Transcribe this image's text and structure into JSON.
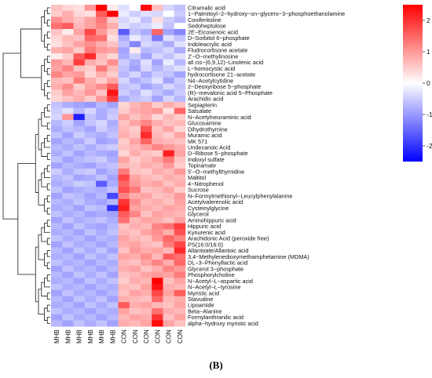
{
  "figure": {
    "caption": "(B)"
  },
  "chart_data": {
    "type": "heatmap",
    "title": "",
    "columns": [
      "MHB",
      "MHB",
      "MHB",
      "MHB",
      "MHB",
      "MHB",
      "CON",
      "CON",
      "CON",
      "CON",
      "CON",
      "CON"
    ],
    "rows": [
      "Citramalic acid",
      "1−Palmitoyl−2−hydroxy−sn−glycero−3−phosphoethanolamine",
      "Coniferitoline",
      "Sedoheptulose",
      "2E−Eicosenoic acid",
      "D−Sorbitol 6−phosphate",
      "Indoleacrylic acid",
      "Fludrocortisone acetate",
      "2'−O−methylinosine",
      "all cis−(6,9,12)−Linolenic acid",
      "L−homocystic acid",
      "hydrocortisone 21−acetate",
      "N4−Acetylcytidine",
      "2−Deoxyribose 5−phosphate",
      "(R)−mevalonic acid 5−Phosphate",
      "Arachidic acid",
      "Sepiapterin",
      "Salsalate",
      "N−Acetylneuraminic acid",
      "Glucosamine",
      "Dihydrothymine",
      "Muramic acid",
      "MK 571",
      "Undecanoic Acid",
      "D−Ribose 5−phosphate",
      "Indoxyl sulfate",
      "Topiramate",
      "5'−O−methylthymidine",
      "Maltitol",
      "4−Nitrophenol",
      "Sucrose",
      "N−Formylmethionyl−Leucylphenylalanine",
      "Acetylvalerenolic acid",
      "Cysteinylglycine",
      "Glycerol",
      "Aminohippuric acid",
      "Hippuric acid",
      "Kynurenic acid",
      "Arachidonic Acid (peroxide free)",
      "PS(16:0/16:0)",
      "Allantoate/Allantoic acid",
      "3,4−Methylenedioxymethamphetamine (MDMA)",
      "DL−3−Phenyllactic acid",
      "Glycerol 3−phosphate",
      "Phosphorylcholine",
      "N−Acetyl−L−aspartic acid",
      "N−Acetyl−L−tyrosine",
      "Myristic acid",
      "Stavudine",
      "Lipoamide",
      "Beta−Alanine",
      "Formylanthranilic acid",
      "alpha−hydroxy myristic acid"
    ],
    "values": [
      [
        0.6,
        0.4,
        0.3,
        1.0,
        2.8,
        0.2,
        -0.3,
        0.0,
        2.4,
        0.6,
        -0.4,
        -0.6
      ],
      [
        0.5,
        0.8,
        0.4,
        0.3,
        1.6,
        2.6,
        -0.2,
        -0.5,
        -0.3,
        -0.4,
        0.0,
        -0.5
      ],
      [
        1.1,
        0.8,
        0.6,
        0.9,
        1.3,
        0.5,
        -0.4,
        -0.2,
        -0.6,
        0.3,
        -0.5,
        -0.7
      ],
      [
        1.4,
        1.6,
        0.7,
        0.9,
        1.2,
        0.8,
        -0.3,
        -0.5,
        -0.4,
        -0.2,
        -0.6,
        0.0
      ],
      [
        0.6,
        0.2,
        0.9,
        1.8,
        1.0,
        0.5,
        -1.6,
        -0.6,
        -0.8,
        1.5,
        -0.9,
        -1.2
      ],
      [
        0.4,
        0.7,
        0.6,
        1.5,
        1.4,
        0.3,
        -0.8,
        -0.2,
        -0.5,
        -1.3,
        -0.3,
        -0.6
      ],
      [
        0.3,
        0.6,
        0.9,
        1.1,
        0.8,
        0.6,
        -0.6,
        -1.2,
        -0.4,
        -0.5,
        -0.8,
        -0.3
      ],
      [
        0.8,
        0.9,
        0.5,
        1.3,
        1.0,
        0.9,
        -0.9,
        0.2,
        -0.7,
        -0.6,
        -0.4,
        -0.8
      ],
      [
        0.2,
        0.5,
        1.6,
        2.1,
        0.7,
        0.4,
        -0.8,
        -0.5,
        -0.9,
        -0.4,
        -0.6,
        -0.3
      ],
      [
        1.0,
        0.7,
        1.9,
        0.8,
        0.6,
        1.1,
        -0.5,
        -0.8,
        -0.3,
        -0.9,
        -0.2,
        -0.7
      ],
      [
        0.9,
        1.2,
        0.6,
        0.5,
        1.3,
        0.7,
        -0.6,
        -0.9,
        -0.4,
        -0.7,
        -0.5,
        -0.3
      ],
      [
        1.2,
        0.9,
        1.0,
        0.4,
        0.8,
        0.5,
        -0.7,
        -0.4,
        -0.8,
        -0.5,
        -0.6,
        -0.9
      ],
      [
        0.7,
        0.6,
        1.3,
        0.8,
        0.5,
        0.9,
        -0.4,
        -0.8,
        -0.6,
        -0.3,
        -0.9,
        -0.5
      ],
      [
        0.8,
        1.1,
        0.5,
        0.9,
        1.1,
        1.6,
        -0.6,
        -0.5,
        -0.9,
        -0.7,
        -0.4,
        -0.6
      ],
      [
        0.5,
        0.9,
        0.7,
        1.0,
        0.6,
        2.3,
        -0.5,
        -0.7,
        -0.3,
        -0.6,
        -0.8,
        -0.5
      ],
      [
        0.4,
        0.6,
        0.8,
        0.5,
        1.0,
        1.9,
        -0.8,
        -0.6,
        -0.5,
        -0.9,
        -0.4,
        -0.7
      ],
      [
        -0.6,
        -0.8,
        -0.9,
        -1.0,
        -0.7,
        -0.9,
        0.4,
        0.7,
        0.9,
        0.5,
        0.8,
        0.6
      ],
      [
        -0.5,
        -0.3,
        -0.7,
        -0.4,
        -0.8,
        -0.6,
        0.5,
        0.8,
        0.9,
        1.0,
        0.3,
        1.5
      ],
      [
        -0.4,
        1.0,
        -2.2,
        -0.6,
        -0.8,
        -0.5,
        0.9,
        0.6,
        0.8,
        0.4,
        0.7,
        0.5
      ],
      [
        -0.7,
        -0.5,
        -0.9,
        -0.6,
        -0.4,
        -0.8,
        0.6,
        0.9,
        1.2,
        0.8,
        0.6,
        0.7
      ],
      [
        -0.8,
        -0.6,
        -0.7,
        -0.9,
        -0.5,
        -0.7,
        0.7,
        0.5,
        1.7,
        0.6,
        0.9,
        0.4
      ],
      [
        -0.6,
        -0.9,
        -0.5,
        -0.7,
        -0.8,
        -0.6,
        0.8,
        0.6,
        2.1,
        0.7,
        0.5,
        0.9
      ],
      [
        -0.9,
        -0.7,
        -0.8,
        -0.5,
        -0.9,
        -0.8,
        0.5,
        0.9,
        1.5,
        0.8,
        0.7,
        0.6
      ],
      [
        -0.7,
        -0.8,
        -0.6,
        -0.8,
        -0.6,
        -0.5,
        0.6,
        0.7,
        0.9,
        1.2,
        1.0,
        0.8
      ],
      [
        -0.8,
        -0.6,
        -0.9,
        -0.7,
        -0.8,
        -0.9,
        0.4,
        0.8,
        0.6,
        0.5,
        2.2,
        0.9
      ],
      [
        -0.6,
        -0.9,
        -0.7,
        -0.6,
        -0.5,
        -0.8,
        0.9,
        0.5,
        0.7,
        0.9,
        1.3,
        0.6
      ],
      [
        -0.9,
        -0.7,
        -0.8,
        -0.9,
        -0.7,
        -0.6,
        0.7,
        0.6,
        0.8,
        0.7,
        1.0,
        0.5
      ],
      [
        -0.5,
        -0.8,
        -0.6,
        -0.5,
        -0.9,
        -0.7,
        1.3,
        0.6,
        0.5,
        0.8,
        0.7,
        1.0
      ],
      [
        -0.7,
        -0.6,
        -0.9,
        -0.8,
        -0.6,
        -0.9,
        1.8,
        0.9,
        0.7,
        0.6,
        0.8,
        0.7
      ],
      [
        -0.8,
        -0.7,
        -0.5,
        -0.6,
        -1.6,
        -0.8,
        1.5,
        1.0,
        0.8,
        0.9,
        0.6,
        0.8
      ],
      [
        -0.6,
        -0.9,
        -0.8,
        -0.7,
        -0.8,
        -0.6,
        1.7,
        1.3,
        0.6,
        0.7,
        0.9,
        0.5
      ],
      [
        -0.9,
        -0.6,
        -0.7,
        -0.9,
        -0.7,
        -1.8,
        1.2,
        0.8,
        0.9,
        0.6,
        0.7,
        1.0
      ],
      [
        -0.7,
        -0.8,
        -0.6,
        -0.8,
        -0.9,
        -0.7,
        2.0,
        1.1,
        0.7,
        0.8,
        0.6,
        0.9
      ],
      [
        -0.8,
        -0.7,
        -0.9,
        -0.6,
        -0.7,
        -2.0,
        2.2,
        0.9,
        0.8,
        0.7,
        0.9,
        0.8
      ],
      [
        -0.6,
        -0.8,
        -0.7,
        -0.9,
        -0.8,
        -0.9,
        1.6,
        1.2,
        0.6,
        0.9,
        0.8,
        0.7
      ],
      [
        -0.9,
        -0.6,
        -0.8,
        -0.7,
        -0.6,
        -0.8,
        1.4,
        0.7,
        0.9,
        0.8,
        0.6,
        0.9
      ],
      [
        -0.7,
        -0.9,
        -0.6,
        -0.8,
        -0.9,
        -0.7,
        0.6,
        0.8,
        0.7,
        1.2,
        1.4,
        1.9
      ],
      [
        -0.8,
        -0.7,
        -0.9,
        -0.6,
        -0.8,
        -0.6,
        0.7,
        0.6,
        0.9,
        1.1,
        0.8,
        1.7
      ],
      [
        -0.6,
        -0.8,
        -0.7,
        -0.9,
        -0.7,
        -0.8,
        0.9,
        0.7,
        0.6,
        1.0,
        1.5,
        1.2
      ],
      [
        -0.9,
        -0.6,
        -0.8,
        -0.7,
        -0.9,
        -0.7,
        0.8,
        0.9,
        0.7,
        0.6,
        1.3,
        1.8
      ],
      [
        -0.7,
        -0.9,
        -0.6,
        -0.8,
        -0.6,
        -0.9,
        0.6,
        1.0,
        0.8,
        0.9,
        0.7,
        2.1
      ],
      [
        -0.8,
        -0.7,
        -0.9,
        -0.6,
        -0.8,
        -0.6,
        0.9,
        0.8,
        1.1,
        0.7,
        1.6,
        1.4
      ],
      [
        -0.6,
        -0.8,
        -0.7,
        -0.9,
        -0.7,
        -0.8,
        0.7,
        0.6,
        0.9,
        1.2,
        0.8,
        1.5
      ],
      [
        -0.9,
        -0.6,
        -0.8,
        -0.7,
        -0.9,
        -0.7,
        0.8,
        0.9,
        0.6,
        0.8,
        1.2,
        1.0
      ],
      [
        -0.7,
        -0.9,
        -0.6,
        -0.8,
        -0.6,
        -0.9,
        0.6,
        0.7,
        0.9,
        1.0,
        0.9,
        1.3
      ],
      [
        -0.8,
        -0.7,
        -0.9,
        -0.6,
        -0.8,
        -0.6,
        0.5,
        0.8,
        0.7,
        2.6,
        0.6,
        0.9
      ],
      [
        -0.6,
        -0.8,
        -0.7,
        -0.9,
        -0.7,
        -0.8,
        0.7,
        0.6,
        0.9,
        2.3,
        0.8,
        0.7
      ],
      [
        -0.9,
        -0.6,
        -0.8,
        -0.7,
        -0.9,
        -0.7,
        0.6,
        0.9,
        0.8,
        1.8,
        0.9,
        1.6
      ],
      [
        -0.7,
        -0.9,
        -0.6,
        -0.8,
        -0.6,
        -0.9,
        0.8,
        0.7,
        0.6,
        1.5,
        0.7,
        0.8
      ],
      [
        -0.8,
        -0.7,
        -0.9,
        -0.6,
        -0.8,
        -0.6,
        1.6,
        0.8,
        0.9,
        0.7,
        0.6,
        0.9
      ],
      [
        -0.6,
        -0.8,
        -0.7,
        -0.9,
        -0.7,
        -0.8,
        0.9,
        0.6,
        0.7,
        1.4,
        0.8,
        0.7
      ],
      [
        -0.9,
        -0.6,
        -0.8,
        -0.7,
        -0.9,
        -0.7,
        0.7,
        0.9,
        0.8,
        2.0,
        0.6,
        0.9
      ],
      [
        -0.7,
        -0.9,
        -0.6,
        -0.8,
        -0.6,
        -0.9,
        0.8,
        0.7,
        0.9,
        2.4,
        0.9,
        0.6
      ]
    ],
    "color_scale": {
      "low": "#0000ff",
      "mid": "#ffffff",
      "high": "#ff0000",
      "min": -2.5,
      "max": 2.5,
      "ticks": [
        -2,
        -1,
        0,
        1,
        2
      ]
    },
    "row_dendrogram": true,
    "legend_position": "top-right"
  }
}
